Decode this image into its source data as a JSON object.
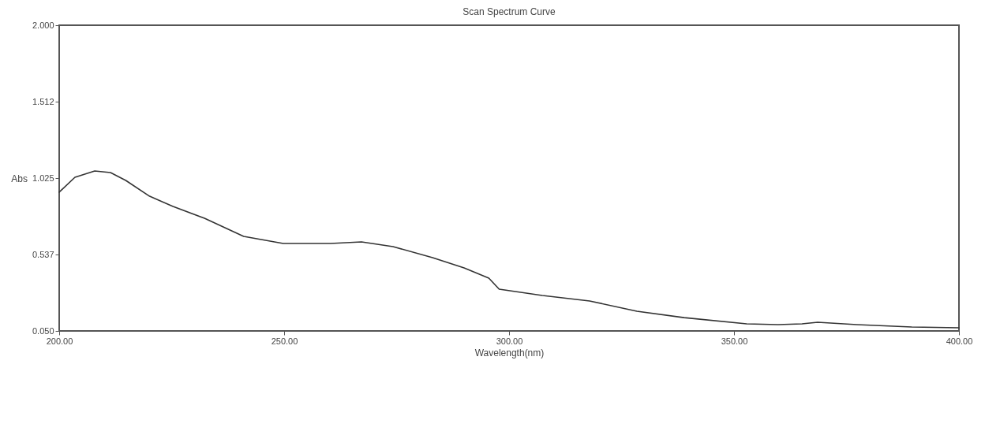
{
  "chart_data": {
    "type": "line",
    "title": "Scan Spectrum Curve",
    "xlabel": "Wavelength(nm)",
    "ylabel": "Abs",
    "x": [
      200,
      203.5,
      207.9,
      211.4,
      214.8,
      220.1,
      225.3,
      232.3,
      241.0,
      249.8,
      260.3,
      267.2,
      274.2,
      283.0,
      290.0,
      295.5,
      297.8,
      307.4,
      317.9,
      328.4,
      338.9,
      352.8,
      359.8,
      365.1,
      368.6,
      377.3,
      389.5,
      400
    ],
    "series": [
      {
        "color": "#333333",
        "values": [
          0.935,
          1.03,
          1.07,
          1.06,
          1.01,
          0.909,
          0.844,
          0.769,
          0.653,
          0.608,
          0.608,
          0.618,
          0.588,
          0.517,
          0.452,
          0.387,
          0.316,
          0.276,
          0.241,
          0.176,
          0.135,
          0.095,
          0.09,
          0.095,
          0.105,
          0.09,
          0.075,
          0.07
        ]
      }
    ],
    "xlim": [
      200,
      400
    ],
    "xticks": [
      {
        "value": 200,
        "label": "200.00"
      },
      {
        "value": 250,
        "label": "250.00"
      },
      {
        "value": 300,
        "label": "300.00"
      },
      {
        "value": 350,
        "label": "350.00"
      },
      {
        "value": 400,
        "label": "400.00"
      }
    ],
    "ylim": [
      0.05,
      2.0
    ],
    "yticks": [
      {
        "value": 0.05,
        "label": "0.050"
      },
      {
        "value": 0.537,
        "label": "0.537"
      },
      {
        "value": 1.025,
        "label": "1.025"
      },
      {
        "value": 1.512,
        "label": "1.512"
      },
      {
        "value": 2.0,
        "label": "2.000"
      }
    ],
    "grid": false,
    "marker": "none",
    "line_style": "solid"
  }
}
